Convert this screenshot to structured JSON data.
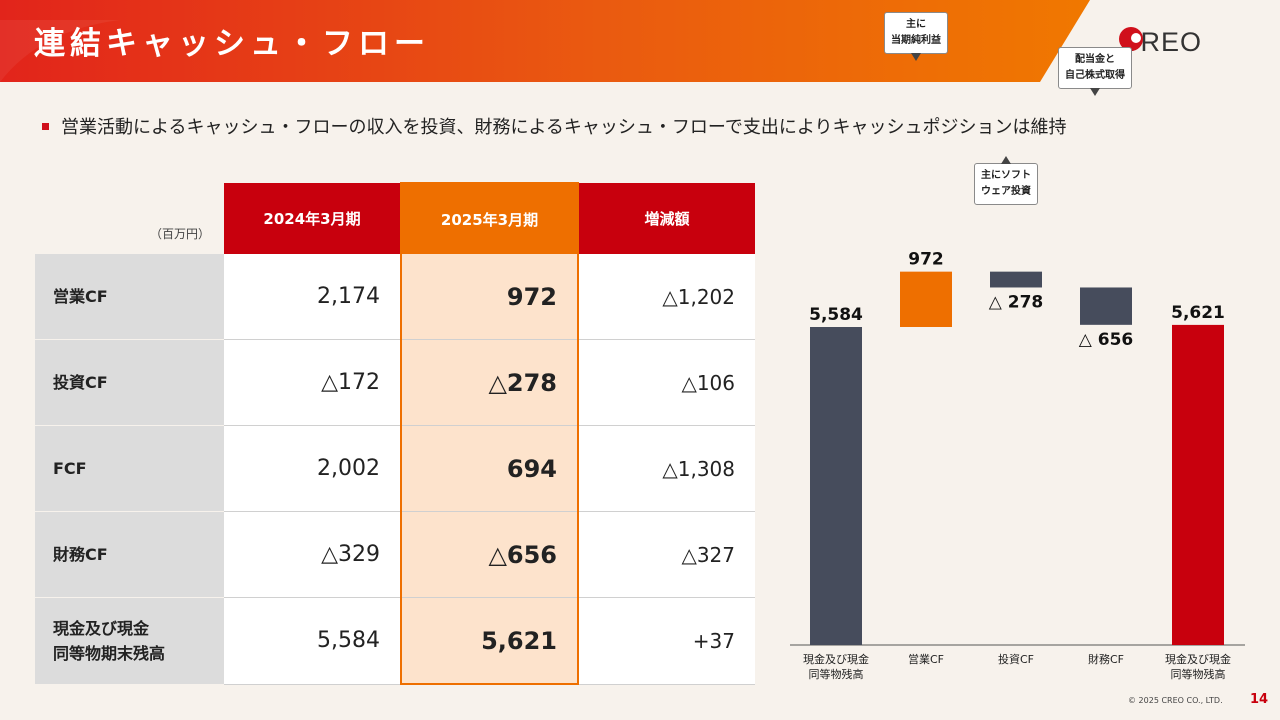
{
  "header": {
    "title": "連結キャッシュ・フロー",
    "logo_text": "CREO"
  },
  "bullet": "営業活動によるキャッシュ・フローの収入を投資、財務によるキャッシュ・フローで支出によりキャッシュポジションは維持",
  "table": {
    "unit": "（百万円）",
    "columns": [
      "2024年3月期",
      "2025年3月期",
      "増減額"
    ],
    "rows": [
      {
        "label": "営業CF",
        "fy2024": "2,174",
        "fy2025": "972",
        "diff": "△1,202"
      },
      {
        "label": "投資CF",
        "fy2024": "△172",
        "fy2025": "△278",
        "diff": "△106"
      },
      {
        "label": "FCF",
        "fy2024": "2,002",
        "fy2025": "694",
        "diff": "△1,308"
      },
      {
        "label": "財務CF",
        "fy2024": "△329",
        "fy2025": "△656",
        "diff": "△327"
      },
      {
        "label": "現金及び現金\n同等物期末残高",
        "fy2024": "5,584",
        "fy2025": "5,621",
        "diff": "+37"
      }
    ]
  },
  "chart_data": {
    "type": "bar",
    "categories": [
      "現金及び現金\n同等物残高",
      "営業CF",
      "投資CF",
      "財務CF",
      "現金及び現金\n同等物残高"
    ],
    "values": [
      5584,
      972,
      -278,
      -656,
      5621
    ],
    "data_labels": [
      "5,584",
      "972",
      "△ 278",
      "△ 656",
      "5,621"
    ],
    "colors": [
      "#464c5c",
      "#ee6f00",
      "#464c5c",
      "#464c5c",
      "#c8000d"
    ],
    "annotations": [
      {
        "for": "営業CF",
        "text": "主に\n当期純利益"
      },
      {
        "for": "投資CF",
        "text": "主にソフト\nウェア投資"
      },
      {
        "for": "財務CF",
        "text": "配当金と\n自己株式取得"
      }
    ]
  },
  "footer": {
    "copyright": "© 2025 CREO CO., LTD.",
    "page": "14"
  }
}
